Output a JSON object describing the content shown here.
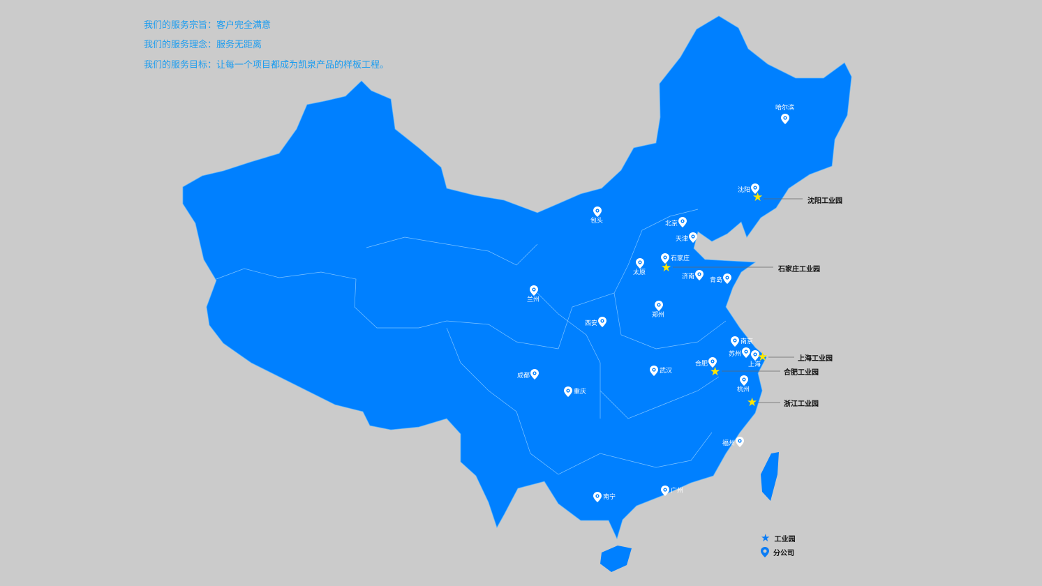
{
  "slogans": [
    {
      "label": "我们的服务宗旨：",
      "value": "客户完全满意"
    },
    {
      "label": "我们的服务理念：",
      "value": "服务无距离"
    },
    {
      "label": "我们的服务目标：",
      "value": "让每一个项目都成为凯泉产品的样板工程。"
    }
  ],
  "colors": {
    "map_fill": "#0080ff",
    "background": "#cbcbcb",
    "slogan_text": "#1a9cf0",
    "star": "#ffe600",
    "legend_star": "#0a7cf5"
  },
  "cities": [
    "哈尔滨",
    "沈阳",
    "包头",
    "北京",
    "天津",
    "石家庄",
    "太原",
    "济南",
    "青岛",
    "兰州",
    "郑州",
    "西安",
    "南京",
    "苏州",
    "上海",
    "合肥",
    "武汉",
    "成都",
    "重庆",
    "杭州",
    "福州",
    "南宁",
    "广州"
  ],
  "industrial_parks": [
    "沈阳工业园",
    "石家庄工业园",
    "上海工业园",
    "合肥工业园",
    "浙江工业园"
  ],
  "legend": {
    "park_icon": "star-icon",
    "park": "工业园",
    "branch_icon": "map-pin-icon",
    "branch": "分公司"
  }
}
